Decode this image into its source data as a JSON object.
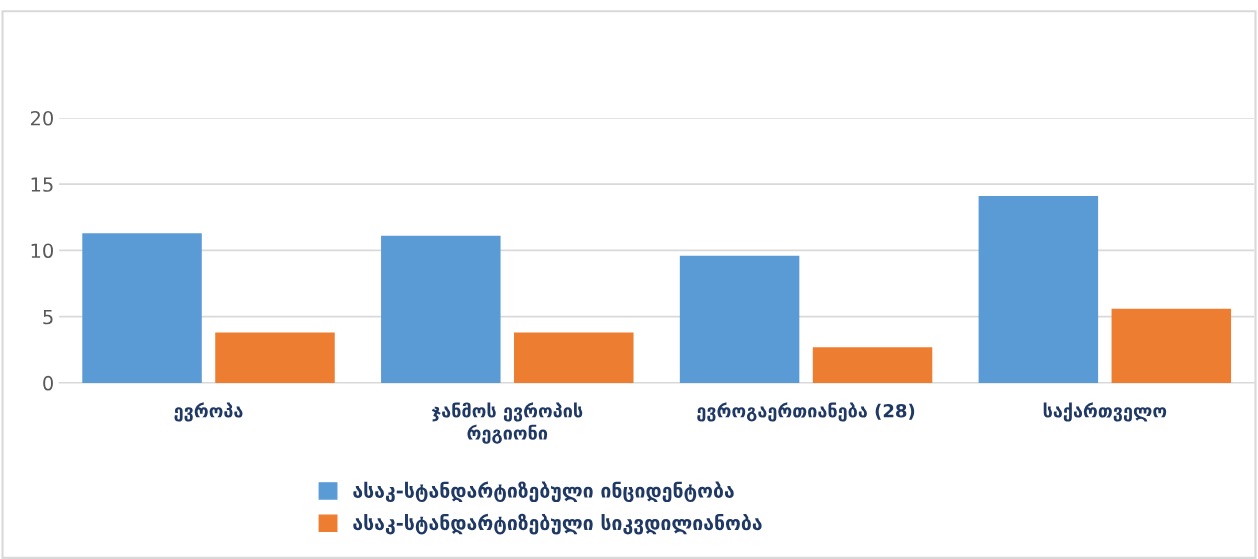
{
  "chart_data": {
    "type": "bar",
    "categories": [
      "ევროპა",
      "ჯანმოს ევროპის\nრეგიონი",
      "ევროგაერთიანება (28)",
      "საქართველო"
    ],
    "series": [
      {
        "name": "ასაკ-სტანდარტიზებული ინციდენტობა",
        "color": "#5b9bd5",
        "values": [
          11.3,
          11.1,
          9.6,
          14.1
        ]
      },
      {
        "name": "ასაკ-სტანდარტიზებული სიკვდილიანობა",
        "color": "#ed7d31",
        "values": [
          3.8,
          3.8,
          2.7,
          5.6
        ]
      }
    ],
    "ylim": [
      0,
      20
    ],
    "yticks": [
      0,
      5,
      10,
      15,
      20
    ],
    "grid": "y",
    "legend": "bottom"
  }
}
